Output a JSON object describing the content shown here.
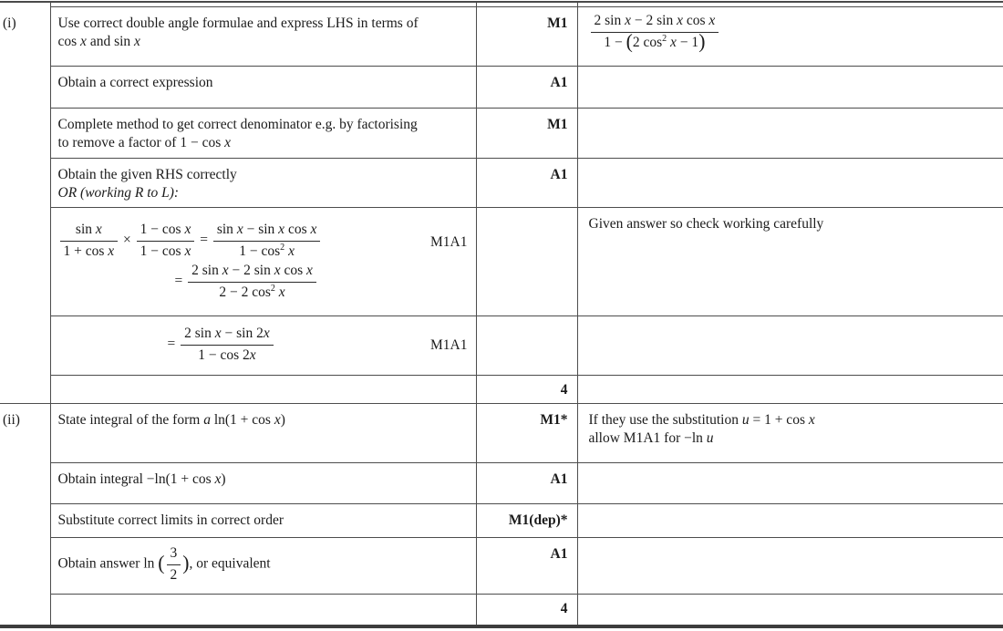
{
  "document_kind": "exam-mark-scheme-table",
  "colors": {
    "rule": "#4a4a4a",
    "thick_rule": "#3d3d3d",
    "text": "#1b1b1b",
    "background": "#ffffff"
  },
  "columns": {
    "part_width": 55,
    "criterion_width": 467,
    "mark_width": 111,
    "comment_width": 467
  },
  "parts": [
    {
      "label": "(i)",
      "rows": [
        {
          "desc": "Use correct double angle formulae and express LHS in terms of<br>cos <i>x</i> and sin <i>x</i>",
          "mark": "M1",
          "comment": "<span class='frac'><span class='fn'>2 sin <i>x</i> − 2 sin <i>x</i> cos <i>x</i></span><span class='fd'>1 − <span class='bigp'>(</span>2 cos<sup>2</sup> <i>x</i> − 1<span class='bigp'>)</span></span></span>"
        },
        {
          "desc": "Obtain a correct expression",
          "mark": "A1"
        },
        {
          "desc": "Complete method to get correct denominator e.g. by factorising<br>to remove a factor of 1 − cos <i>x</i>",
          "mark": "M1"
        },
        {
          "desc": "Obtain the given RHS correctly<br><i>OR (working R to L):</i>",
          "mark": "A1"
        },
        {
          "desc": "<span class='mrow'><span class='frac'><span class='fn'>sin <i>x</i></span><span class='fd'>1 + cos <i>x</i></span></span> × <span class='frac'><span class='fn'>1 − cos <i>x</i></span><span class='fd'>1 − cos <i>x</i></span></span> = <span class='frac'><span class='fn'>sin <i>x</i> − sin <i>x</i> cos <i>x</i></span><span class='fd'>1 − cos<sup>2</sup> <i>x</i></span></span></span><span class='mrow m2'>= <span class='frac'><span class='fn'>2 sin <i>x</i> − 2 sin <i>x</i> cos <i>x</i></span><span class='fd'>2 − 2 cos<sup>2</sup> <i>x</i></span></span></span>",
          "inline_mark": "M1A1",
          "comment": "Given answer so check working carefully"
        },
        {
          "desc": "<span class='mrow m2b'>= <span class='frac'><span class='fn'>2 sin <i>x</i> − sin 2<i>x</i></span><span class='fd'>1 − cos 2<i>x</i></span></span></span>",
          "inline_mark": "M1A1"
        },
        {
          "mark": "4"
        }
      ]
    },
    {
      "label": "(ii)",
      "rows": [
        {
          "desc": "State integral of the form <i>a</i> ln(1 + cos <i>x</i>)",
          "mark": "M1*",
          "comment": "If they use the substitution <i>u</i> = 1 + cos <i>x</i><br>allow M1A1 for −ln <i>u</i>"
        },
        {
          "desc": "Obtain integral −ln(1 + cos <i>x</i>)",
          "mark": "A1"
        },
        {
          "desc": "Substitute correct limits in correct order",
          "mark": "M1(dep)*"
        },
        {
          "desc": "Obtain answer ln <span class='bigp'>(</span><span class='frac'><span class='fn'>3</span><span class='fd'>2</span></span><span class='bigp'>)</span>, or equivalent",
          "mark": "A1"
        },
        {
          "mark": "4"
        }
      ]
    }
  ]
}
